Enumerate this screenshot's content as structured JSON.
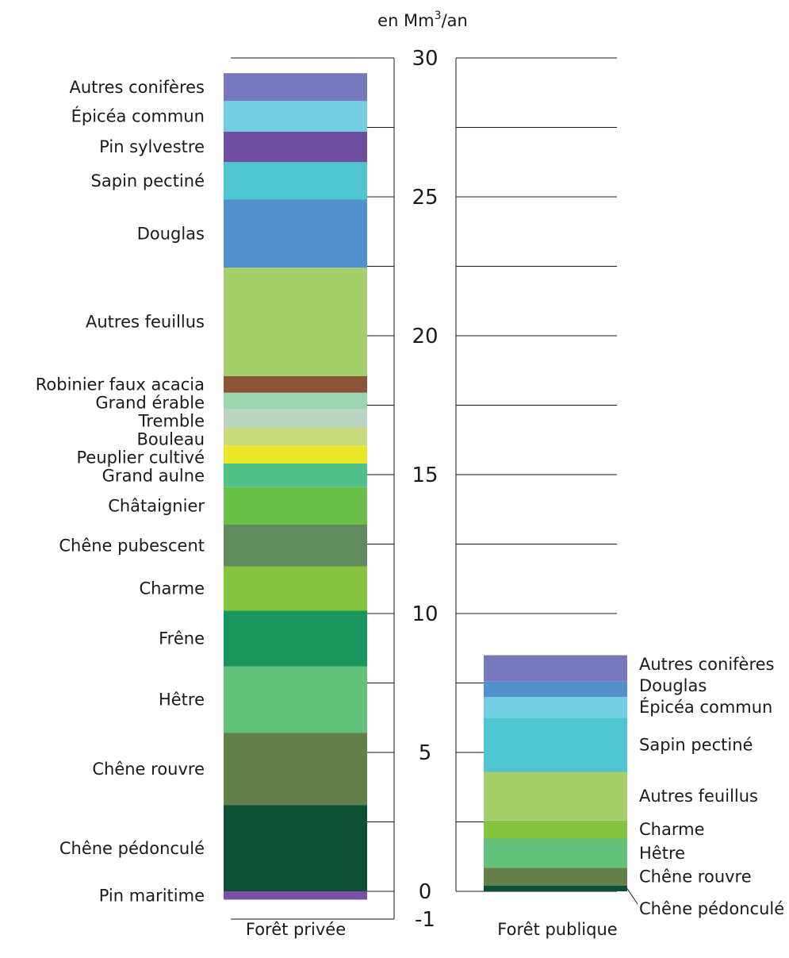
{
  "chart_data": {
    "type": "bar",
    "stacked": true,
    "unit_label": "en Mm",
    "unit_sup": "3",
    "unit_tail": "/an",
    "categories": [
      "Forêt privée",
      "Forêt publique"
    ],
    "ylim": [
      -1,
      30
    ],
    "yticks": [
      0,
      5,
      10,
      15,
      20,
      25,
      30
    ],
    "yticks_extra": [
      -1
    ],
    "grid": true,
    "legend": "inline labels beside each bar",
    "stacks": [
      {
        "category": "Forêt privée",
        "negative": [
          {
            "name": "Pin maritime",
            "value": 0.3,
            "color": "#7b4fa3"
          }
        ],
        "segments": [
          {
            "name": "Chêne pédonculé",
            "value": 3.1,
            "color": "#0d5035"
          },
          {
            "name": "Chêne rouvre",
            "value": 2.6,
            "color": "#63804a"
          },
          {
            "name": "Hêtre",
            "value": 2.4,
            "color": "#62c07b"
          },
          {
            "name": "Frêne",
            "value": 2.0,
            "color": "#19965e"
          },
          {
            "name": "Charme",
            "value": 1.6,
            "color": "#86c440"
          },
          {
            "name": "Chêne pubescent",
            "value": 1.5,
            "color": "#618b5e"
          },
          {
            "name": "Châtaignier",
            "value": 1.35,
            "color": "#6abf48"
          },
          {
            "name": "Grand aulne",
            "value": 0.85,
            "color": "#52c089"
          },
          {
            "name": "Peuplier cultivé",
            "value": 0.65,
            "color": "#eae62a"
          },
          {
            "name": "Bouleau",
            "value": 0.65,
            "color": "#c8dc7e"
          },
          {
            "name": "Tremble",
            "value": 0.65,
            "color": "#bad5c1"
          },
          {
            "name": "Grand érable",
            "value": 0.6,
            "color": "#9dd5b0"
          },
          {
            "name": "Robinier faux acacia",
            "value": 0.6,
            "color": "#8b5638"
          },
          {
            "name": "Autres feuillus",
            "value": 3.9,
            "color": "#a4cf6a"
          },
          {
            "name": "Douglas",
            "value": 2.45,
            "color": "#5290cc"
          },
          {
            "name": "Sapin pectiné",
            "value": 1.35,
            "color": "#4fc5d0"
          },
          {
            "name": "Pin sylvestre",
            "value": 1.1,
            "color": "#6e4ea0"
          },
          {
            "name": "Épicéa commun",
            "value": 1.1,
            "color": "#72cde0"
          },
          {
            "name": "Autres conifères",
            "value": 1.0,
            "color": "#7778bd"
          }
        ]
      },
      {
        "category": "Forêt publique",
        "negative": [],
        "segments": [
          {
            "name": "Chêne pédonculé",
            "value": 0.2,
            "color": "#0d5035"
          },
          {
            "name": "Chêne rouvre",
            "value": 0.65,
            "color": "#63804a"
          },
          {
            "name": "Hêtre",
            "value": 1.05,
            "color": "#62c07b"
          },
          {
            "name": "Charme",
            "value": 0.65,
            "color": "#86c440"
          },
          {
            "name": "Autres feuillus",
            "value": 1.75,
            "color": "#a4cf6a"
          },
          {
            "name": "Sapin pectiné",
            "value": 1.95,
            "color": "#4fc5d0"
          },
          {
            "name": "Épicéa commun",
            "value": 0.75,
            "color": "#72cde0"
          },
          {
            "name": "Douglas",
            "value": 0.55,
            "color": "#5290cc"
          },
          {
            "name": "Autres conifères",
            "value": 0.95,
            "color": "#7778bd"
          }
        ]
      }
    ]
  }
}
